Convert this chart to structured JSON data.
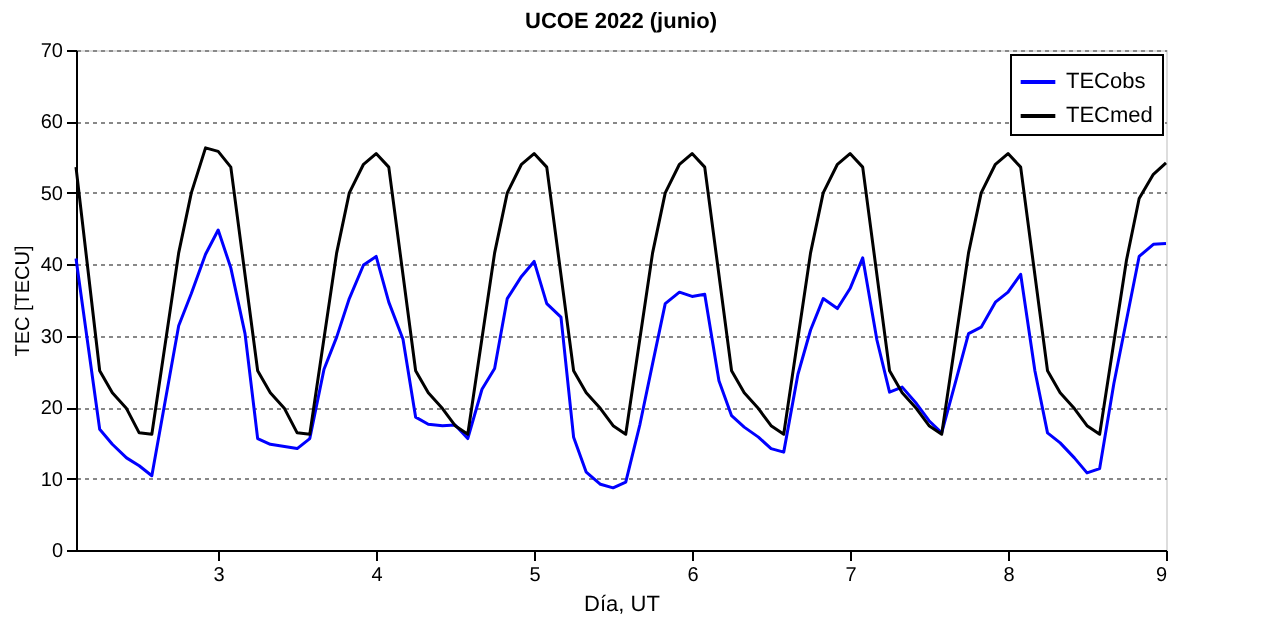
{
  "chart_data": {
    "type": "line",
    "title": "UCOE 2022 (junio)",
    "xlabel": "Día, UT",
    "ylabel": "TEC [TECU]",
    "xlim": [
      2.1,
      9
    ],
    "xticks": [
      3,
      4,
      5,
      6,
      7,
      8,
      9
    ],
    "ylim": [
      0,
      70
    ],
    "yticks": [
      0,
      10,
      20,
      30,
      40,
      50,
      60,
      70
    ],
    "grid": "y",
    "legend": "top right",
    "line_style": "solid",
    "marker": "none",
    "series": [
      {
        "name": "TECobs",
        "color": "#0000ff",
        "x": [
          2.1,
          2.25,
          2.33,
          2.42,
          2.5,
          2.58,
          2.75,
          2.83,
          2.92,
          3.0,
          3.08,
          3.17,
          3.25,
          3.33,
          3.42,
          3.5,
          3.58,
          3.67,
          3.75,
          3.83,
          3.92,
          4.0,
          4.08,
          4.17,
          4.25,
          4.33,
          4.42,
          4.5,
          4.58,
          4.67,
          4.75,
          4.83,
          4.92,
          5.0,
          5.08,
          5.17,
          5.25,
          5.33,
          5.42,
          5.5,
          5.58,
          5.67,
          5.75,
          5.83,
          5.92,
          6.0,
          6.08,
          6.17,
          6.25,
          6.33,
          6.42,
          6.5,
          6.58,
          6.67,
          6.75,
          6.83,
          6.92,
          7.0,
          7.08,
          7.17,
          7.25,
          7.33,
          7.42,
          7.5,
          7.58,
          7.67,
          7.75,
          7.83,
          7.92,
          8.0,
          8.08,
          8.17,
          8.25,
          8.33,
          8.42,
          8.5,
          8.58,
          8.67,
          8.75,
          8.83,
          8.92,
          9.0
        ],
        "values": [
          40.8,
          16.9,
          14.8,
          12.9,
          11.8,
          10.4,
          31.4,
          35.9,
          41.4,
          44.8,
          39.5,
          30.3,
          15.6,
          14.8,
          14.5,
          14.2,
          15.6,
          25.3,
          29.8,
          35.2,
          39.9,
          41.1,
          34.7,
          29.5,
          18.6,
          17.6,
          17.4,
          17.5,
          15.6,
          22.5,
          25.4,
          35.2,
          38.3,
          40.4,
          34.5,
          32.6,
          15.8,
          10.9,
          9.2,
          8.7,
          9.5,
          17.6,
          26.1,
          34.5,
          36.1,
          35.5,
          35.8,
          23.7,
          18.8,
          17.2,
          15.8,
          14.2,
          13.7,
          24.6,
          30.8,
          35.2,
          33.8,
          36.6,
          40.9,
          29.4,
          22.1,
          22.8,
          20.5,
          18.1,
          16.4,
          23.7,
          30.3,
          31.2,
          34.7,
          36.1,
          38.6,
          25.1,
          16.4,
          15.0,
          12.9,
          10.8,
          11.4,
          23.3,
          32.2,
          41.1,
          42.8,
          42.9
        ]
      },
      {
        "name": "TECmed",
        "color": "#000000",
        "x": [
          2.1,
          2.25,
          2.33,
          2.42,
          2.5,
          2.58,
          2.75,
          2.83,
          2.92,
          3.0,
          3.08,
          3.25,
          3.33,
          3.42,
          3.5,
          3.58,
          3.75,
          3.83,
          3.92,
          4.0,
          4.08,
          4.25,
          4.33,
          4.42,
          4.5,
          4.58,
          4.75,
          4.83,
          4.92,
          5.0,
          5.08,
          5.25,
          5.33,
          5.42,
          5.5,
          5.58,
          5.75,
          5.83,
          5.92,
          6.0,
          6.08,
          6.25,
          6.33,
          6.42,
          6.5,
          6.58,
          6.75,
          6.83,
          6.92,
          7.0,
          7.08,
          7.25,
          7.33,
          7.42,
          7.5,
          7.58,
          7.75,
          7.83,
          7.92,
          8.0,
          8.08,
          8.25,
          8.33,
          8.42,
          8.5,
          8.58,
          8.75,
          8.83,
          8.92,
          9.0
        ],
        "values": [
          53.6,
          25.1,
          22.0,
          19.8,
          16.4,
          16.2,
          41.6,
          50.0,
          56.3,
          55.8,
          53.6,
          25.1,
          22.0,
          19.8,
          16.4,
          16.2,
          41.6,
          50.0,
          54.0,
          55.5,
          53.6,
          25.1,
          22.0,
          19.8,
          17.4,
          16.2,
          41.6,
          50.0,
          54.0,
          55.5,
          53.6,
          25.1,
          22.0,
          19.8,
          17.4,
          16.2,
          41.6,
          50.0,
          54.0,
          55.5,
          53.6,
          25.1,
          22.0,
          19.8,
          17.4,
          16.2,
          41.6,
          50.0,
          54.0,
          55.5,
          53.6,
          25.1,
          22.0,
          19.8,
          17.4,
          16.2,
          41.6,
          50.0,
          54.0,
          55.5,
          53.6,
          25.1,
          22.0,
          19.8,
          17.4,
          16.2,
          40.6,
          49.2,
          52.6,
          54.2
        ]
      }
    ]
  }
}
